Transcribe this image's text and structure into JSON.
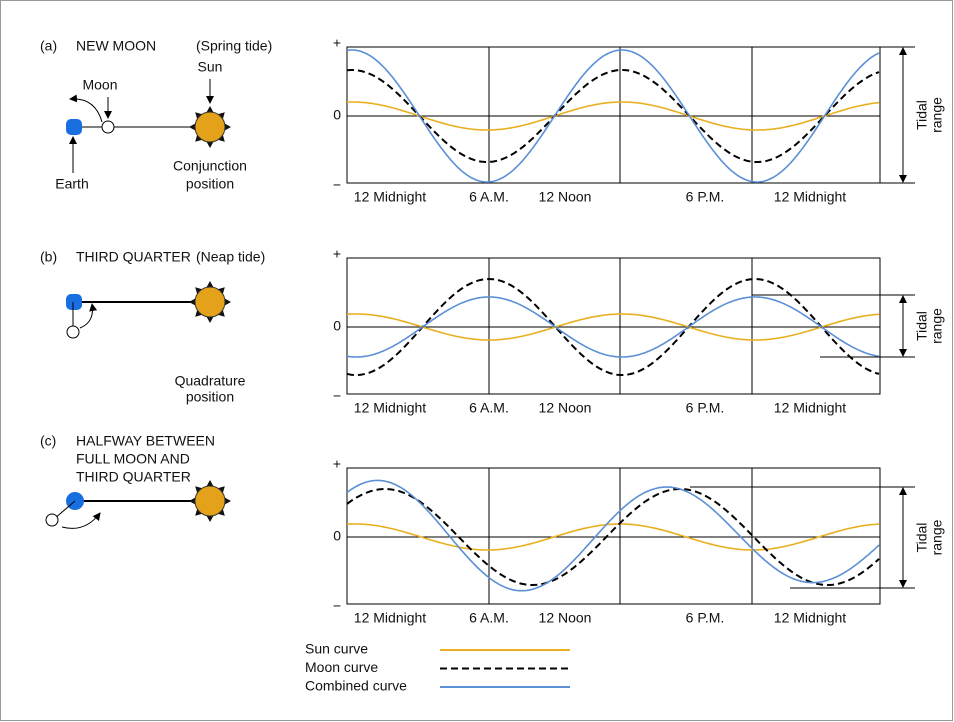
{
  "panels": [
    {
      "heading": [
        "(a)",
        "NEW MOON",
        "(Spring tide)"
      ],
      "diagram_labels": [
        "Moon",
        "Sun",
        "Earth",
        "Conjunction",
        "position"
      ],
      "axis": {
        "plus": "+",
        "zero": "0",
        "minus": "−",
        "x_labels": [
          "12 Midnight",
          "6 A.M.",
          "12 Noon",
          "6 P.M.",
          "12 Midnight"
        ]
      },
      "tidal_range": [
        "Tidal",
        "range"
      ]
    },
    {
      "heading": [
        "(b)",
        "THIRD QUARTER",
        "(Neap tide)"
      ],
      "diagram_labels": [
        "Quadrature",
        "position"
      ],
      "axis": {
        "plus": "+",
        "zero": "0",
        "minus": "−",
        "x_labels": [
          "12 Midnight",
          "6 A.M.",
          "12 Noon",
          "6 P.M.",
          "12 Midnight"
        ]
      },
      "tidal_range": [
        "Tidal",
        "range"
      ]
    },
    {
      "heading": [
        "(c)",
        "HALFWAY BETWEEN",
        "FULL MOON AND",
        "THIRD QUARTER"
      ],
      "diagram_labels": [],
      "axis": {
        "plus": "+",
        "zero": "0",
        "minus": "−",
        "x_labels": [
          "12 Midnight",
          "6 A.M.",
          "12 Noon",
          "6 P.M.",
          "12 Midnight"
        ]
      },
      "tidal_range": [
        "Tidal",
        "range"
      ]
    }
  ],
  "legend": [
    {
      "label": "Sun curve",
      "color": "#e8b020"
    },
    {
      "label": "Moon  curve",
      "color": "#000000"
    },
    {
      "label": "Combined curve",
      "color": "#5b8fd6"
    }
  ]
}
